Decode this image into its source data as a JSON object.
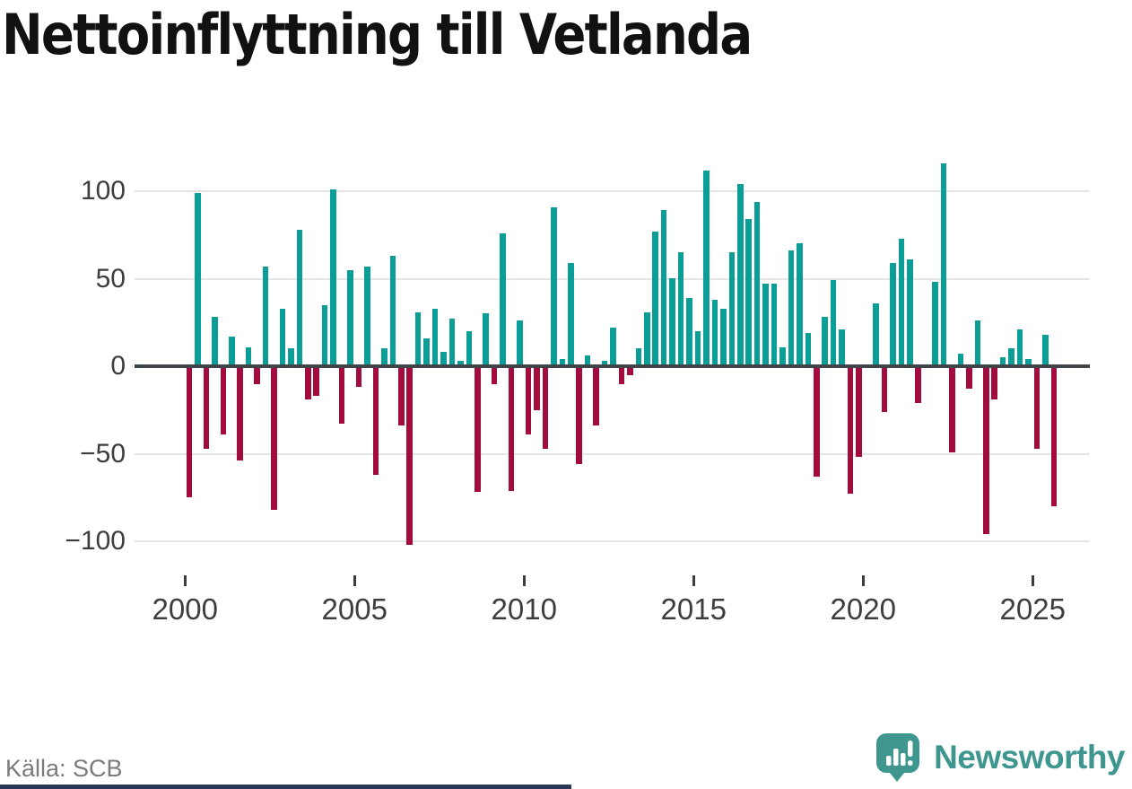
{
  "title": "Nettoinflyttning till Vetlanda",
  "source": "Källa: SCB",
  "branding": {
    "name": "Newsworthy",
    "logo_icon": "speech-bubble-bar-chart-icon",
    "brand_color": "#3e968e"
  },
  "colors": {
    "positive_bar": "#0b9e96",
    "negative_bar": "#a40b3d",
    "axis": "#3f4449",
    "grid": "#e4e4e4",
    "tick_text": "#3d3d3d",
    "title_text": "#111111",
    "source_text": "#7b7b7b",
    "footer_bar": "#2b3556"
  },
  "chart_data": {
    "type": "bar",
    "title": "Nettoinflyttning till Vetlanda",
    "xlabel": "",
    "ylabel": "",
    "grid": "horizontal",
    "ylim": [
      -115,
      125
    ],
    "yticks": [
      100,
      50,
      0,
      -50,
      -100
    ],
    "ytick_labels": [
      "100",
      "50",
      "0",
      "−50",
      "−100"
    ],
    "xticks": [
      "2000",
      "2005",
      "2010",
      "2015",
      "2020",
      "2025"
    ],
    "series_note": "quarterly net migration, 4 bars per year tick, 2000Q1–2025Q3",
    "values": [
      -74,
      98,
      -46,
      27,
      -38,
      16,
      -53,
      10,
      -9,
      56,
      -81,
      32,
      9,
      77,
      -18,
      -16,
      34,
      100,
      -32,
      54,
      -11,
      56,
      -61,
      9,
      62,
      -33,
      -101,
      30,
      15,
      32,
      7,
      26,
      2,
      19,
      -71,
      29,
      -9,
      75,
      -70,
      25,
      -38,
      -24,
      -46,
      90,
      3,
      58,
      -55,
      5,
      -33,
      2,
      21,
      -9,
      -4,
      9,
      30,
      76,
      88,
      49,
      64,
      38,
      19,
      111,
      37,
      32,
      64,
      103,
      83,
      93,
      46,
      46,
      10,
      65,
      69,
      18,
      -62,
      27,
      48,
      20,
      -72,
      -51,
      0,
      35,
      -25,
      58,
      72,
      60,
      -20,
      0,
      47,
      115,
      -48,
      6,
      -12,
      25,
      -95,
      -18,
      4,
      9,
      20,
      3,
      -46,
      17,
      -79
    ]
  }
}
